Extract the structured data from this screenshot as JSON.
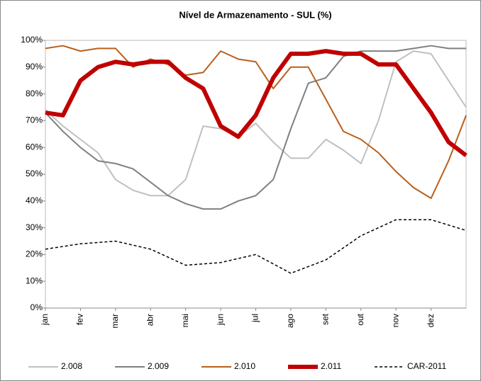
{
  "chart_data": {
    "type": "line",
    "title": "Nível de Armazenamento - SUL (%)",
    "categories": [
      "jan",
      null,
      "fev",
      null,
      "mar",
      null,
      "abr",
      null,
      "mai",
      null,
      "jun",
      null,
      "jul",
      null,
      "ago",
      null,
      "set",
      null,
      "out",
      null,
      "nov",
      null,
      "dez",
      null,
      null
    ],
    "series": [
      {
        "name": "2.008",
        "color": "#c0c0c0",
        "width": 2,
        "dashed": false,
        "values": [
          74,
          68,
          63,
          58,
          48,
          44,
          42,
          42,
          48,
          68,
          67,
          64,
          69,
          62,
          56,
          56,
          63,
          59,
          54,
          70,
          92,
          96,
          95,
          85,
          75
        ]
      },
      {
        "name": "2.009",
        "color": "#808080",
        "width": 2,
        "dashed": false,
        "values": [
          73,
          66,
          60,
          55,
          54,
          52,
          47,
          42,
          39,
          37,
          37,
          40,
          42,
          48,
          67,
          84,
          86,
          94,
          96,
          96,
          96,
          97,
          98,
          97,
          97
        ]
      },
      {
        "name": "2.010",
        "color": "#b8601c",
        "width": 2,
        "dashed": false,
        "values": [
          97,
          98,
          96,
          97,
          97,
          90,
          93,
          91,
          87,
          88,
          96,
          93,
          92,
          82,
          90,
          90,
          78,
          66,
          63,
          58,
          51,
          45,
          41,
          55,
          72
        ]
      },
      {
        "name": "2.011",
        "color": "#c00000",
        "width": 6,
        "dashed": false,
        "values": [
          73,
          72,
          85,
          90,
          92,
          91,
          92,
          92,
          86,
          82,
          68,
          64,
          72,
          86,
          95,
          95,
          96,
          95,
          95,
          91,
          91,
          82,
          73,
          62,
          57
        ]
      },
      {
        "name": "CAR-2011",
        "color": "#000000",
        "width": 1.5,
        "dashed": true,
        "values": [
          22,
          23,
          24,
          24.5,
          25,
          23.5,
          22,
          19,
          16,
          16.5,
          17,
          18.5,
          20,
          16.5,
          13,
          15.5,
          18,
          22.5,
          27,
          30,
          33,
          33,
          33,
          31,
          29
        ]
      }
    ],
    "ylim": [
      0,
      100
    ],
    "yticks": [
      {
        "value": 0,
        "label": "0%"
      },
      {
        "value": 10,
        "label": "10%"
      },
      {
        "value": 20,
        "label": "20%"
      },
      {
        "value": 30,
        "label": "30%"
      },
      {
        "value": 40,
        "label": "40%"
      },
      {
        "value": 50,
        "label": "50%"
      },
      {
        "value": 60,
        "label": "60%"
      },
      {
        "value": 70,
        "label": "70%"
      },
      {
        "value": 80,
        "label": "80%"
      },
      {
        "value": 90,
        "label": "90%"
      },
      {
        "value": 100,
        "label": "100%"
      }
    ],
    "legend": "bottom"
  }
}
